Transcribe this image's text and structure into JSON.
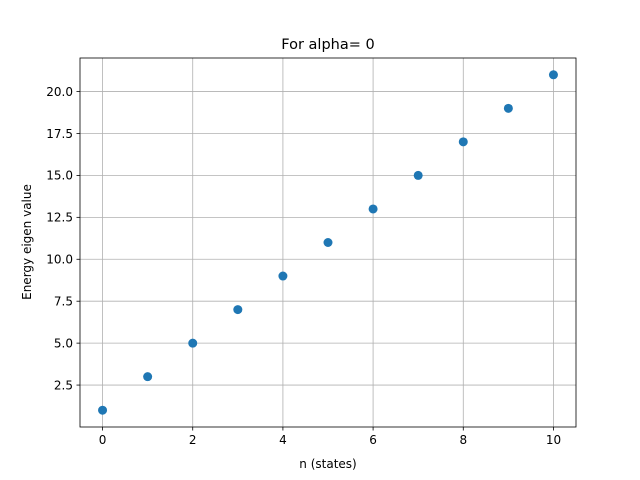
{
  "chart_data": {
    "type": "scatter",
    "title": "For alpha= 0",
    "xlabel": "n (states)",
    "ylabel": "Energy eigen value",
    "x": [
      0,
      1,
      2,
      3,
      4,
      5,
      6,
      7,
      8,
      9,
      10
    ],
    "y": [
      1,
      3,
      5,
      7,
      9,
      11,
      13,
      15,
      17,
      19,
      21
    ],
    "xlim": [
      -0.5,
      10.5
    ],
    "ylim": [
      0.0,
      22.0
    ],
    "xticks": [
      0,
      2,
      4,
      6,
      8,
      10
    ],
    "yticks": [
      2.5,
      5.0,
      7.5,
      10.0,
      12.5,
      15.0,
      17.5,
      20.0
    ],
    "ytick_labels": [
      "2.5",
      "5.0",
      "7.5",
      "10.0",
      "12.5",
      "15.0",
      "17.5",
      "20.0"
    ],
    "grid": true,
    "marker_color": "#1f77b4"
  }
}
